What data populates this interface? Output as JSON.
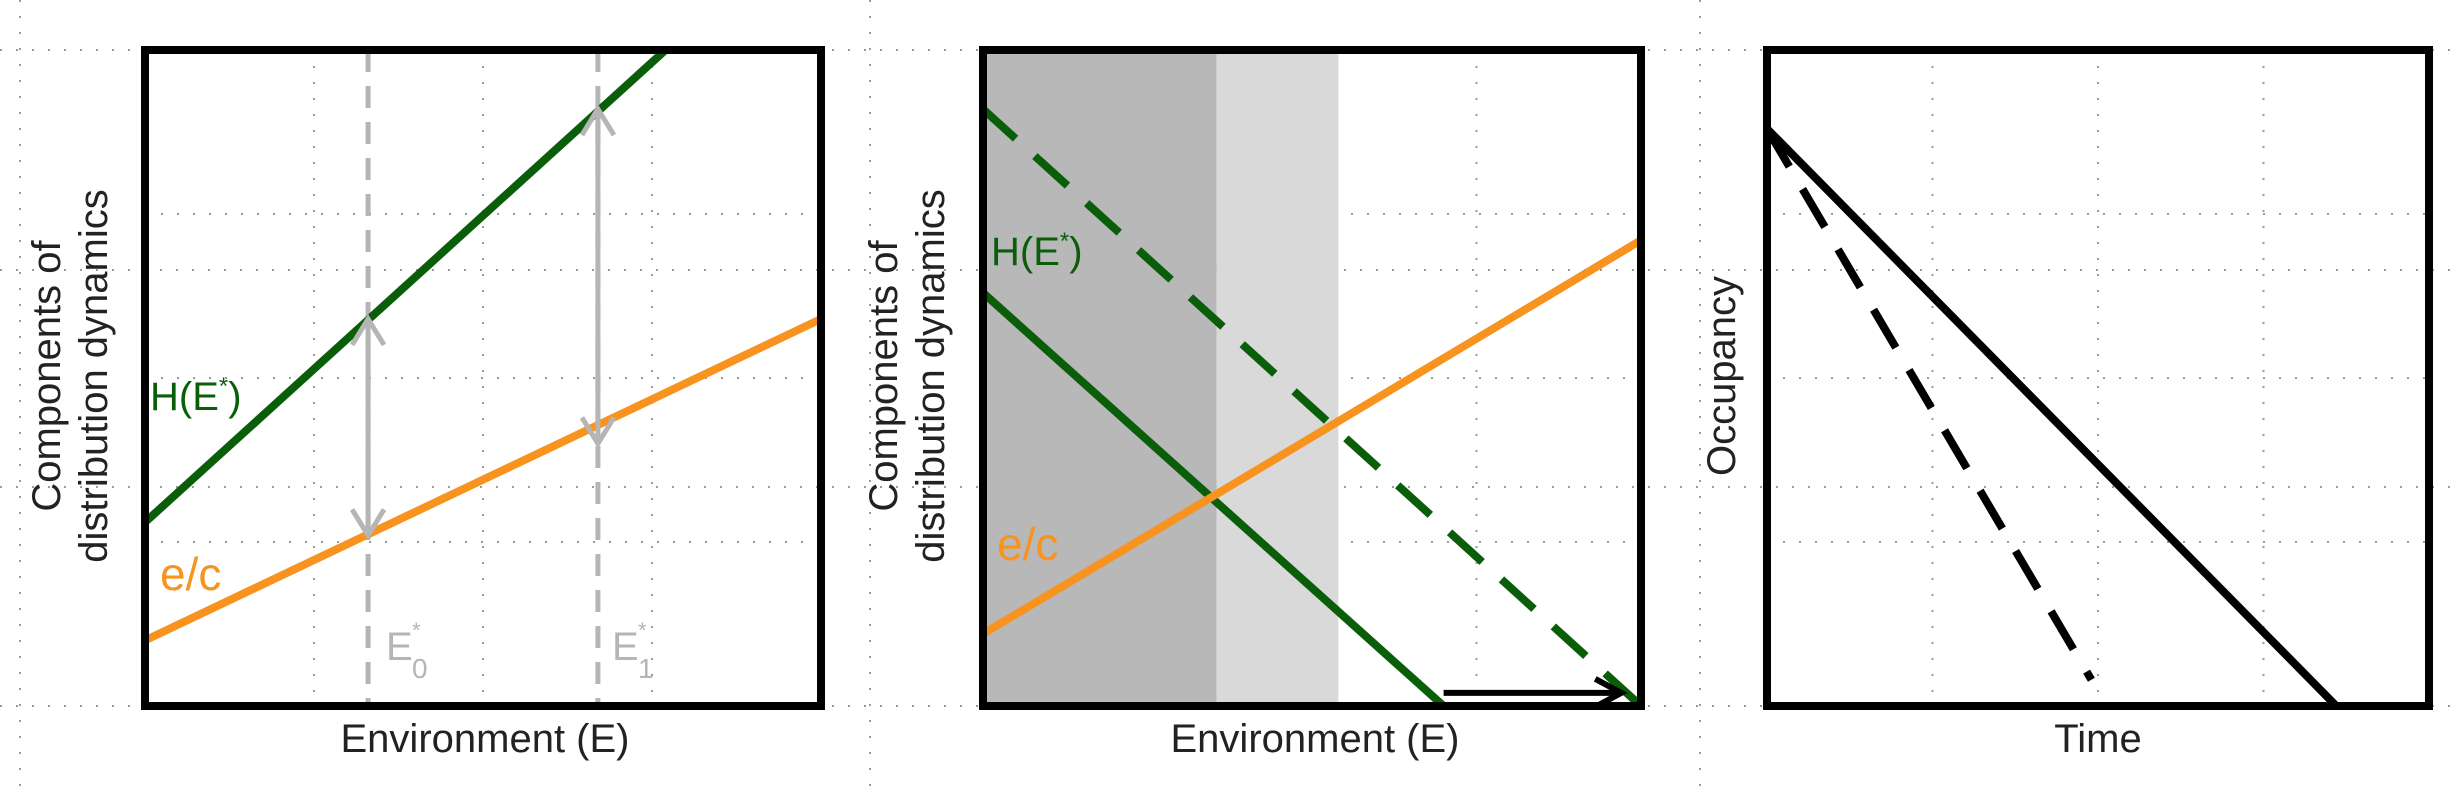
{
  "colors": {
    "green": "#0a5e0a",
    "orange": "#f7931e",
    "gray_line": "#b5b5b5",
    "dark_shade": "#b8b8b8",
    "light_shade": "#d9d9d9",
    "frame": "#000000",
    "dots": "#9a9a9a"
  },
  "chart_data": [
    {
      "type": "line",
      "xlabel": "Environment (E)",
      "ylabel_line1": "Components of",
      "ylabel_line2": "distribution dynamics",
      "xlim": [
        0,
        10
      ],
      "ylim": [
        0,
        10
      ],
      "grid": "dotted",
      "series": [
        {
          "name": "H(E*)",
          "style": "solid",
          "color": "green",
          "x": [
            0,
            7.7
          ],
          "y": [
            2.8,
            10
          ]
        },
        {
          "name": "e/c",
          "style": "solid",
          "color": "orange",
          "x": [
            0,
            10
          ],
          "y": [
            1.0,
            5.9
          ]
        }
      ],
      "series_labels": [
        {
          "series": "H(E*)",
          "base": "H(E",
          "sup": "*",
          "close": ")"
        },
        {
          "series": "e/c",
          "text": "e/c"
        }
      ],
      "vlines": [
        {
          "label": "E",
          "sup": "*",
          "sub": "0",
          "x": 3.3,
          "style": "dashed",
          "color": "gray_line"
        },
        {
          "label": "E",
          "sup": "*",
          "sub": "1",
          "x": 6.7,
          "style": "dashed",
          "color": "gray_line"
        }
      ],
      "arrows": [
        {
          "x": 3.3,
          "from": 5.9,
          "to": 2.6,
          "double": true
        },
        {
          "x": 6.7,
          "from": 4.0,
          "to": 9.1,
          "double": true
        }
      ]
    },
    {
      "type": "line",
      "xlabel": "Environment (E)",
      "ylabel_line1": "Components of",
      "ylabel_line2": "distribution dynamics",
      "xlim": [
        0,
        10
      ],
      "ylim": [
        0,
        10
      ],
      "grid": "dotted",
      "shaded_regions": [
        {
          "x": [
            0,
            3.55
          ],
          "color": "dark_shade"
        },
        {
          "x": [
            3.55,
            5.4
          ],
          "color": "light_shade"
        }
      ],
      "series": [
        {
          "name": "H(E*)",
          "style": "solid",
          "color": "green",
          "x": [
            0,
            7.0
          ],
          "y": [
            6.3,
            0
          ]
        },
        {
          "name": "H(E*) shifted",
          "style": "dashed",
          "color": "green",
          "x": [
            0,
            10
          ],
          "y": [
            9.1,
            0
          ]
        },
        {
          "name": "e/c",
          "style": "solid",
          "color": "orange",
          "x": [
            0,
            10
          ],
          "y": [
            1.1,
            7.1
          ]
        }
      ],
      "series_labels": [
        {
          "series": "H(E*)",
          "base": "H(E",
          "sup": "*",
          "close": ")"
        },
        {
          "series": "e/c",
          "text": "e/c"
        }
      ],
      "arrows": [
        {
          "y": 0.2,
          "from_x": 7.0,
          "to_x": 9.7,
          "horizontal": true
        }
      ]
    },
    {
      "type": "line",
      "xlabel": "Time",
      "ylabel": "Occupancy",
      "xlim": [
        0,
        10
      ],
      "ylim": [
        0,
        10
      ],
      "grid": "dotted",
      "series": [
        {
          "style": "solid",
          "color": "frame",
          "x": [
            0,
            8.6
          ],
          "y": [
            8.8,
            0
          ]
        },
        {
          "style": "dashed",
          "color": "frame",
          "x": [
            0,
            4.9
          ],
          "y": [
            8.8,
            0.4
          ]
        }
      ]
    }
  ]
}
